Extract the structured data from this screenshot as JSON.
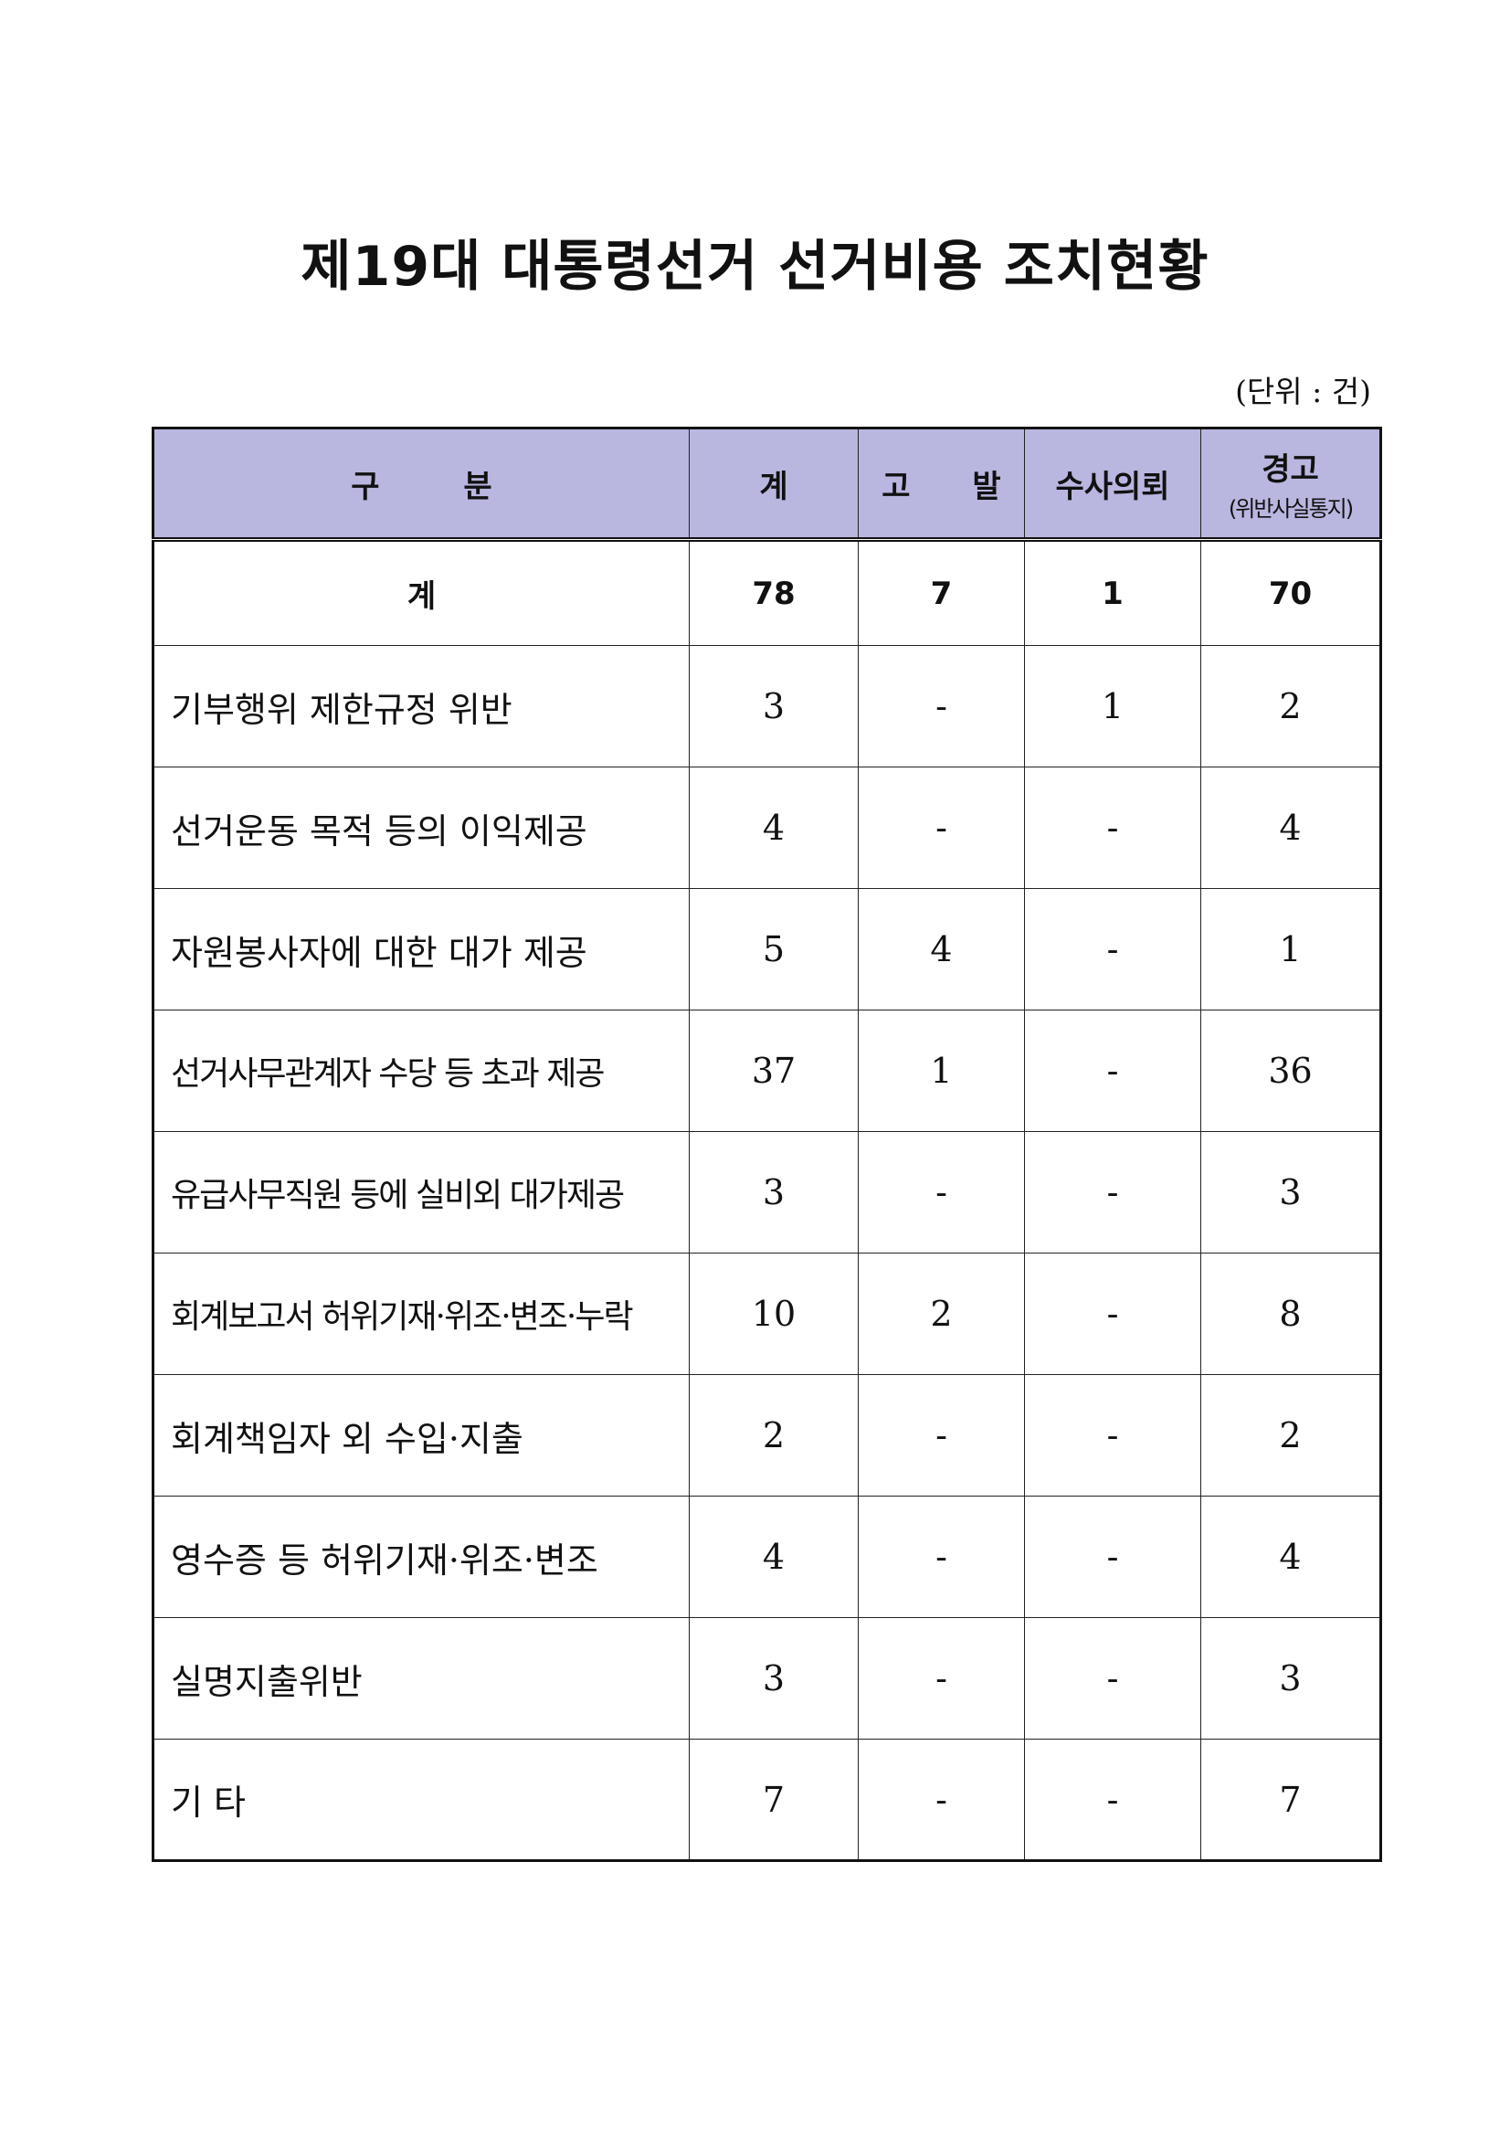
{
  "title": "제19대 대통령선거 선거비용 조치현황",
  "unit": "(단위 : 건)",
  "table": {
    "headers": {
      "category": "구   분",
      "total": "계",
      "prosecution": "고  발",
      "investigation": "수사의뢰",
      "warning_main": "경고",
      "warning_sub": "(위반사실통지)"
    },
    "total_row": {
      "label": "계",
      "total": "78",
      "prosecution": "7",
      "investigation": "1",
      "warning": "70"
    },
    "rows": [
      {
        "label": "기부행위 제한규정 위반",
        "total": "3",
        "prosecution": "-",
        "investigation": "1",
        "warning": "2"
      },
      {
        "label": "선거운동 목적 등의 이익제공",
        "total": "4",
        "prosecution": "-",
        "investigation": "-",
        "warning": "4"
      },
      {
        "label": "자원봉사자에 대한 대가 제공",
        "total": "5",
        "prosecution": "4",
        "investigation": "-",
        "warning": "1"
      },
      {
        "label": "선거사무관계자 수당 등 초과 제공",
        "total": "37",
        "prosecution": "1",
        "investigation": "-",
        "warning": "36"
      },
      {
        "label": "유급사무직원 등에 실비외 대가제공",
        "total": "3",
        "prosecution": "-",
        "investigation": "-",
        "warning": "3"
      },
      {
        "label": "회계보고서 허위기재·위조·변조·누락",
        "total": "10",
        "prosecution": "2",
        "investigation": "-",
        "warning": "8"
      },
      {
        "label": "회계책임자 외 수입·지출",
        "total": "2",
        "prosecution": "-",
        "investigation": "-",
        "warning": "2"
      },
      {
        "label": "영수증 등 허위기재·위조·변조",
        "total": "4",
        "prosecution": "-",
        "investigation": "-",
        "warning": "4"
      },
      {
        "label": "실명지출위반",
        "total": "3",
        "prosecution": "-",
        "investigation": "-",
        "warning": "3"
      },
      {
        "label": "기  타",
        "total": "7",
        "prosecution": "-",
        "investigation": "-",
        "warning": "7"
      }
    ]
  }
}
